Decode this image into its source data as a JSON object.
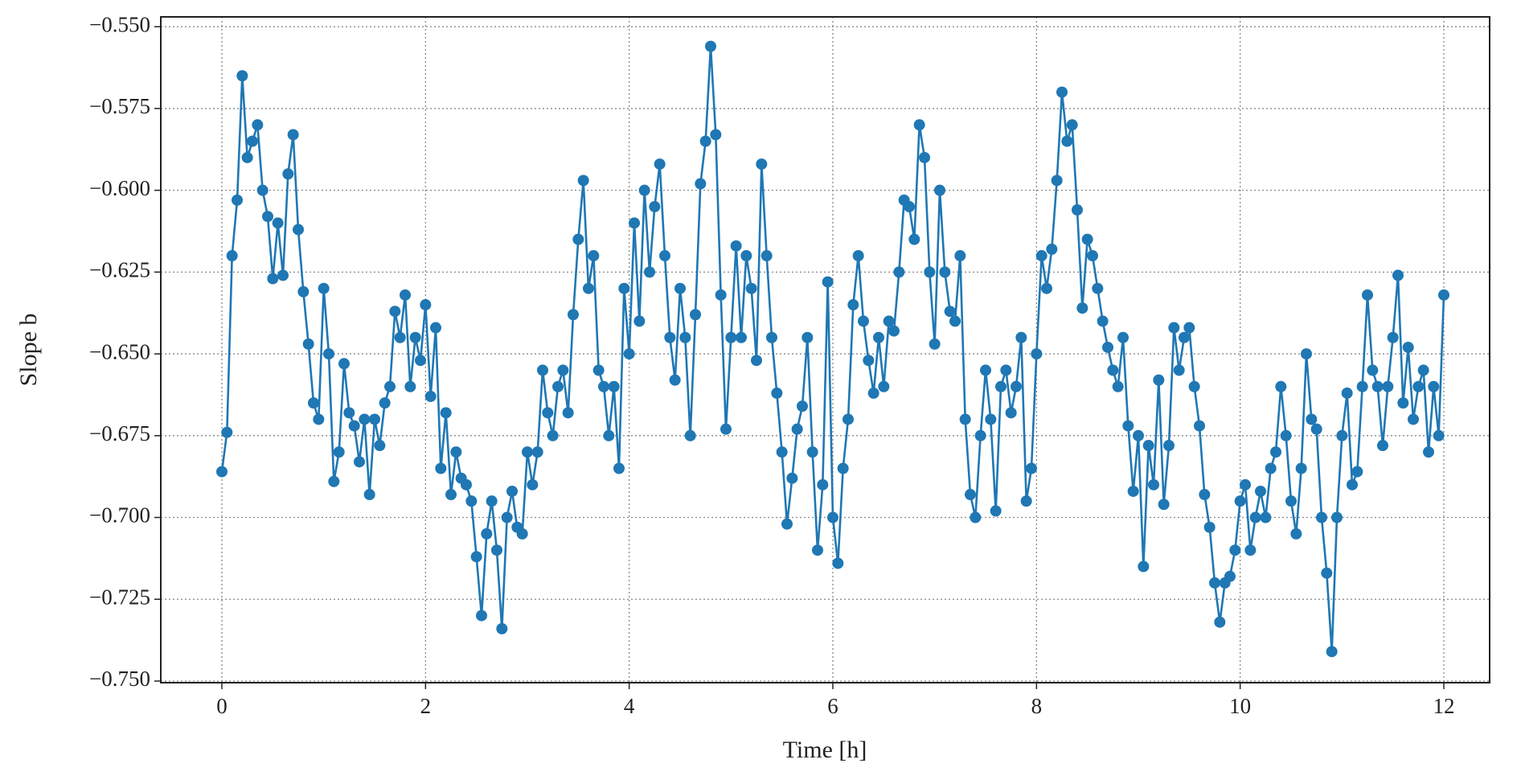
{
  "chart_data": {
    "type": "line",
    "xlabel": "Time [h]",
    "ylabel": "Slope b",
    "color": "#1f77b4",
    "grid": true,
    "marker": true,
    "xlim": [
      -0.6,
      12.45
    ],
    "ylim": [
      -0.7505,
      -0.547
    ],
    "xticks": [
      0,
      2,
      4,
      6,
      8,
      10,
      12
    ],
    "yticks": [
      {
        "value": -0.55,
        "label": "−0.550"
      },
      {
        "value": -0.575,
        "label": "−0.575"
      },
      {
        "value": -0.6,
        "label": "−0.600"
      },
      {
        "value": -0.625,
        "label": "−0.625"
      },
      {
        "value": -0.65,
        "label": "−0.650"
      },
      {
        "value": -0.675,
        "label": "−0.675"
      },
      {
        "value": -0.7,
        "label": "−0.700"
      },
      {
        "value": -0.725,
        "label": "−0.725"
      },
      {
        "value": -0.75,
        "label": "−0.750"
      }
    ],
    "x": [
      0,
      0.05,
      0.1,
      0.15,
      0.2,
      0.25,
      0.3,
      0.35,
      0.4,
      0.45,
      0.5,
      0.55,
      0.6,
      0.65,
      0.7,
      0.75,
      0.8,
      0.85,
      0.9,
      0.95,
      1,
      1.05,
      1.1,
      1.15,
      1.2,
      1.25,
      1.3,
      1.35,
      1.4,
      1.45,
      1.5,
      1.55,
      1.6,
      1.65,
      1.7,
      1.75,
      1.8,
      1.85,
      1.9,
      1.95,
      2,
      2.05,
      2.1,
      2.15,
      2.2,
      2.25,
      2.3,
      2.35,
      2.4,
      2.45,
      2.5,
      2.55,
      2.6,
      2.65,
      2.7,
      2.75,
      2.8,
      2.85,
      2.9,
      2.95,
      3,
      3.05,
      3.1,
      3.15,
      3.2,
      3.25,
      3.3,
      3.35,
      3.4,
      3.45,
      3.5,
      3.55,
      3.6,
      3.65,
      3.7,
      3.75,
      3.8,
      3.85,
      3.9,
      3.95,
      4,
      4.05,
      4.1,
      4.15,
      4.2,
      4.25,
      4.3,
      4.35,
      4.4,
      4.45,
      4.5,
      4.55,
      4.6,
      4.65,
      4.7,
      4.75,
      4.8,
      4.85,
      4.9,
      4.95,
      5,
      5.05,
      5.1,
      5.15,
      5.2,
      5.25,
      5.3,
      5.35,
      5.4,
      5.45,
      5.5,
      5.55,
      5.6,
      5.65,
      5.7,
      5.75,
      5.8,
      5.85,
      5.9,
      5.95,
      6,
      6.05,
      6.1,
      6.15,
      6.2,
      6.25,
      6.3,
      6.35,
      6.4,
      6.45,
      6.5,
      6.55,
      6.6,
      6.65,
      6.7,
      6.75,
      6.8,
      6.85,
      6.9,
      6.95,
      7,
      7.05,
      7.1,
      7.15,
      7.2,
      7.25,
      7.3,
      7.35,
      7.4,
      7.45,
      7.5,
      7.55,
      7.6,
      7.65,
      7.7,
      7.75,
      7.8,
      7.85,
      7.9,
      7.95,
      8,
      8.05,
      8.1,
      8.15,
      8.2,
      8.25,
      8.3,
      8.35,
      8.4,
      8.45,
      8.5,
      8.55,
      8.6,
      8.65,
      8.7,
      8.75,
      8.8,
      8.85,
      8.9,
      8.95,
      9,
      9.05,
      9.1,
      9.15,
      9.2,
      9.25,
      9.3,
      9.35,
      9.4,
      9.45,
      9.5,
      9.55,
      9.6,
      9.65,
      9.7,
      9.75,
      9.8,
      9.85,
      9.9,
      9.95,
      10,
      10.05,
      10.1,
      10.15,
      10.2,
      10.25,
      10.3,
      10.35,
      10.4,
      10.45,
      10.5,
      10.55,
      10.6,
      10.65,
      10.7,
      10.75,
      10.8,
      10.85,
      10.9,
      10.95,
      11,
      11.05,
      11.1,
      11.15,
      11.2,
      11.25,
      11.3,
      11.35,
      11.4,
      11.45,
      11.5,
      11.55,
      11.6,
      11.65,
      11.7,
      11.75,
      11.8,
      11.85,
      11.9,
      11.95,
      12
    ],
    "values": [
      -0.686,
      -0.674,
      -0.62,
      -0.603,
      -0.565,
      -0.59,
      -0.585,
      -0.58,
      -0.6,
      -0.608,
      -0.627,
      -0.61,
      -0.626,
      -0.595,
      -0.583,
      -0.612,
      -0.631,
      -0.647,
      -0.665,
      -0.67,
      -0.63,
      -0.65,
      -0.689,
      -0.68,
      -0.653,
      -0.668,
      -0.672,
      -0.683,
      -0.67,
      -0.693,
      -0.67,
      -0.678,
      -0.665,
      -0.66,
      -0.637,
      -0.645,
      -0.632,
      -0.66,
      -0.645,
      -0.652,
      -0.635,
      -0.663,
      -0.642,
      -0.685,
      -0.668,
      -0.693,
      -0.68,
      -0.688,
      -0.69,
      -0.695,
      -0.712,
      -0.73,
      -0.705,
      -0.695,
      -0.71,
      -0.734,
      -0.7,
      -0.692,
      -0.703,
      -0.705,
      -0.68,
      -0.69,
      -0.68,
      -0.655,
      -0.668,
      -0.675,
      -0.66,
      -0.655,
      -0.668,
      -0.638,
      -0.615,
      -0.597,
      -0.63,
      -0.62,
      -0.655,
      -0.66,
      -0.675,
      -0.66,
      -0.685,
      -0.63,
      -0.65,
      -0.61,
      -0.64,
      -0.6,
      -0.625,
      -0.605,
      -0.592,
      -0.62,
      -0.645,
      -0.658,
      -0.63,
      -0.645,
      -0.675,
      -0.638,
      -0.598,
      -0.585,
      -0.556,
      -0.583,
      -0.632,
      -0.673,
      -0.645,
      -0.617,
      -0.645,
      -0.62,
      -0.63,
      -0.652,
      -0.592,
      -0.62,
      -0.645,
      -0.662,
      -0.68,
      -0.702,
      -0.688,
      -0.673,
      -0.666,
      -0.645,
      -0.68,
      -0.71,
      -0.69,
      -0.628,
      -0.7,
      -0.714,
      -0.685,
      -0.67,
      -0.635,
      -0.62,
      -0.64,
      -0.652,
      -0.662,
      -0.645,
      -0.66,
      -0.64,
      -0.643,
      -0.625,
      -0.603,
      -0.605,
      -0.615,
      -0.58,
      -0.59,
      -0.625,
      -0.647,
      -0.6,
      -0.625,
      -0.637,
      -0.64,
      -0.62,
      -0.67,
      -0.693,
      -0.7,
      -0.675,
      -0.655,
      -0.67,
      -0.698,
      -0.66,
      -0.655,
      -0.668,
      -0.66,
      -0.645,
      -0.695,
      -0.685,
      -0.65,
      -0.62,
      -0.63,
      -0.618,
      -0.597,
      -0.57,
      -0.585,
      -0.58,
      -0.606,
      -0.636,
      -0.615,
      -0.62,
      -0.63,
      -0.64,
      -0.648,
      -0.655,
      -0.66,
      -0.645,
      -0.672,
      -0.692,
      -0.675,
      -0.715,
      -0.678,
      -0.69,
      -0.658,
      -0.696,
      -0.678,
      -0.642,
      -0.655,
      -0.645,
      -0.642,
      -0.66,
      -0.672,
      -0.693,
      -0.703,
      -0.72,
      -0.732,
      -0.72,
      -0.718,
      -0.71,
      -0.695,
      -0.69,
      -0.71,
      -0.7,
      -0.692,
      -0.7,
      -0.685,
      -0.68,
      -0.66,
      -0.675,
      -0.695,
      -0.705,
      -0.685,
      -0.65,
      -0.67,
      -0.673,
      -0.7,
      -0.717,
      -0.741,
      -0.7,
      -0.675,
      -0.662,
      -0.69,
      -0.686,
      -0.66,
      -0.632,
      -0.655,
      -0.66,
      -0.678,
      -0.66,
      -0.645,
      -0.626,
      -0.665,
      -0.648,
      -0.67,
      -0.66,
      -0.655,
      -0.68,
      -0.66,
      -0.675,
      -0.632
    ]
  }
}
